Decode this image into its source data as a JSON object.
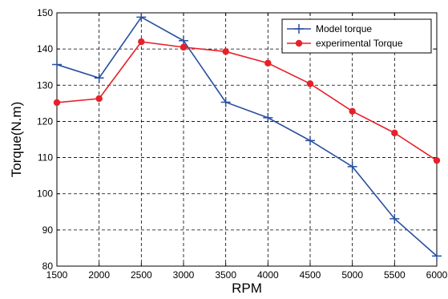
{
  "chart_data": {
    "type": "line",
    "title": "",
    "xlabel": "RPM",
    "ylabel": "Torque(N.m)",
    "x": [
      1500,
      2000,
      2500,
      3000,
      3500,
      4000,
      4500,
      5000,
      5500,
      6000
    ],
    "xlim": [
      1500,
      6000
    ],
    "ylim": [
      80,
      150
    ],
    "xticks": [
      1500,
      2000,
      2500,
      3000,
      3500,
      4000,
      4500,
      5000,
      5500,
      6000
    ],
    "yticks": [
      80,
      90,
      100,
      110,
      120,
      130,
      140,
      150
    ],
    "grid": true,
    "legend_position": "top-right",
    "series": [
      {
        "name": "Model torque",
        "color": "#2a4f9e",
        "marker": "plus",
        "values": [
          135.7,
          132.0,
          148.8,
          142.3,
          125.3,
          121.0,
          114.7,
          107.5,
          93.1,
          82.8
        ]
      },
      {
        "name": "experimental Torque",
        "color": "#e8202a",
        "marker": "circle",
        "values": [
          125.2,
          126.3,
          142.0,
          140.5,
          139.3,
          136.1,
          130.4,
          122.8,
          116.8,
          109.2
        ]
      }
    ]
  }
}
